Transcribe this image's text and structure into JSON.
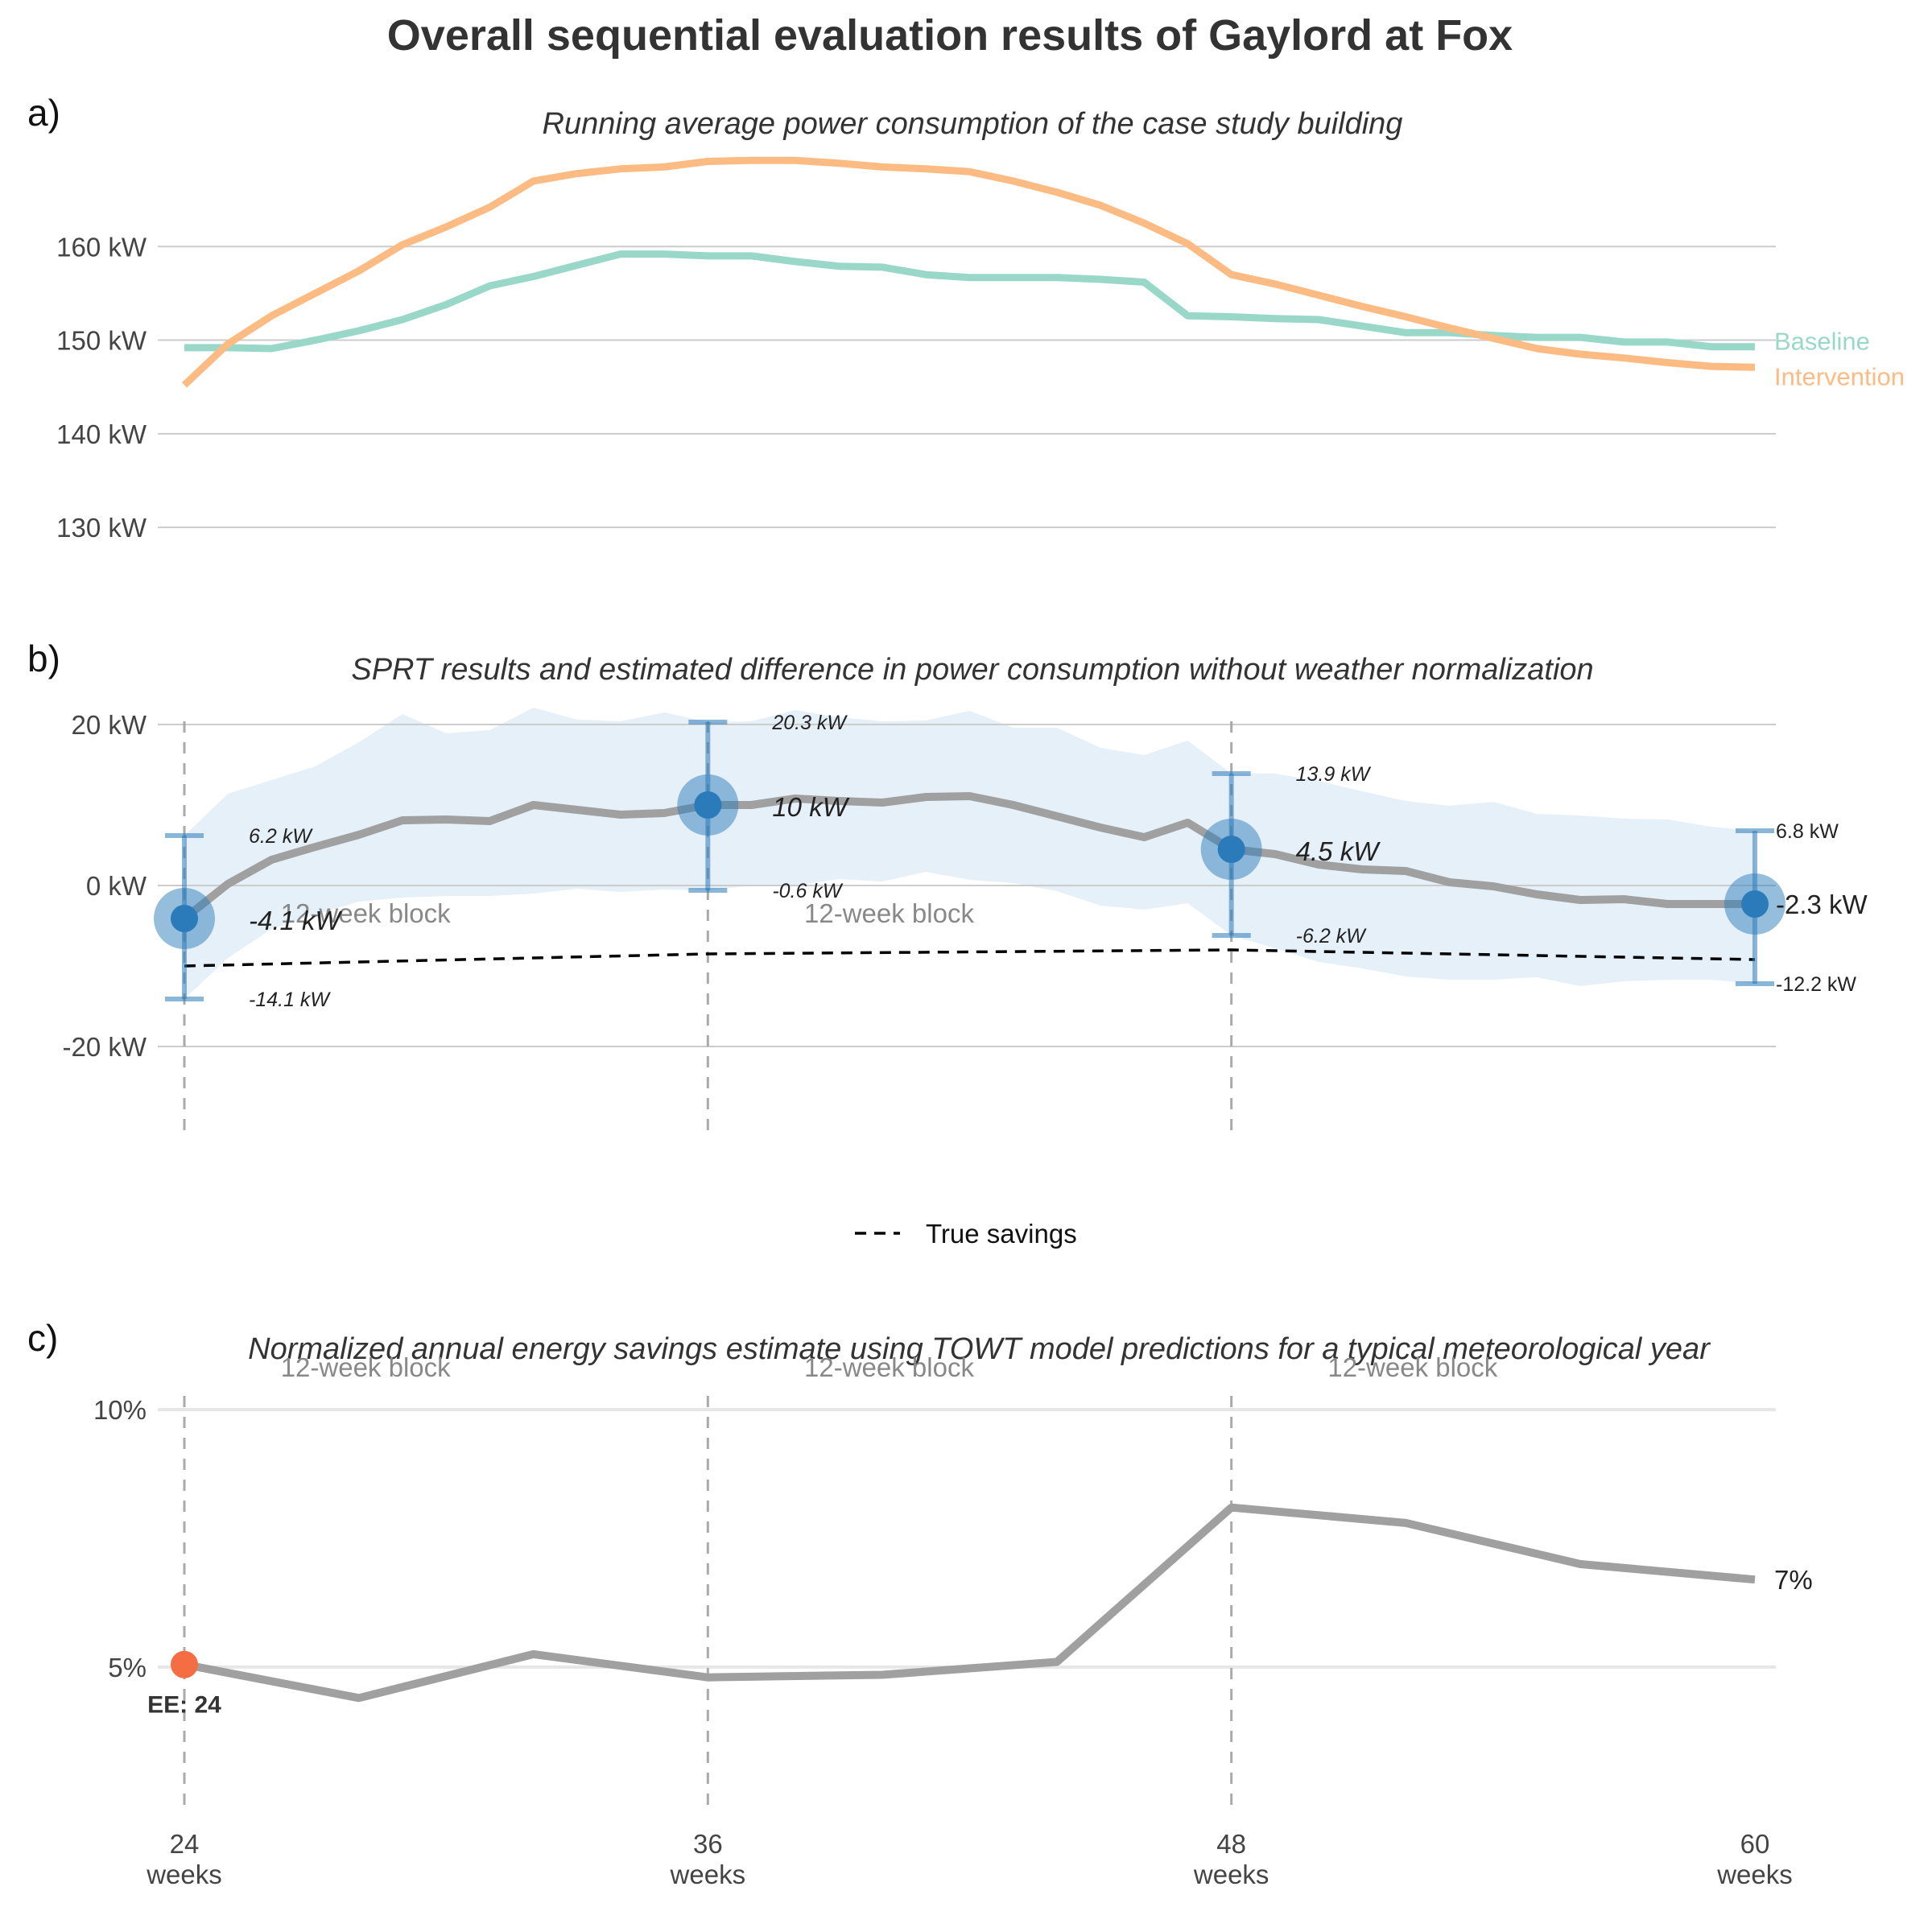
{
  "title": "Overall sequential evaluation results of Gaylord at Fox",
  "panels": {
    "a": {
      "label": "a)",
      "subtitle": "Running average power consumption of the case study building"
    },
    "b": {
      "label": "b)",
      "subtitle": "SPRT results and estimated difference in power consumption without weather normalization"
    },
    "c": {
      "label": "c)",
      "subtitle": "Normalized annual energy savings estimate using TOWT model predictions for a typical meteorological year"
    }
  },
  "colors": {
    "baseline": "#99d8c9",
    "intervention": "#fdbb84",
    "estimate_line": "#a0a0a0",
    "ribbon": "#deebf7",
    "point": "#2b7bba",
    "ee_point": "#f46d43"
  },
  "block_label": "12-week block",
  "legend": {
    "label": "True savings",
    "style": "dashed black"
  },
  "x_ticks": [
    {
      "week": 24,
      "line1": "24",
      "line2": "weeks"
    },
    {
      "week": 36,
      "line1": "36",
      "line2": "weeks"
    },
    {
      "week": 48,
      "line1": "48",
      "line2": "weeks"
    },
    {
      "week": 60,
      "line1": "60",
      "line2": "weeks"
    }
  ],
  "chart_data": [
    {
      "type": "line",
      "panel": "a",
      "xlim": [
        24,
        60
      ],
      "ylim": [
        127,
        170
      ],
      "y_ticks": [
        {
          "value": 130,
          "label": "130 kW"
        },
        {
          "value": 140,
          "label": "140 kW"
        },
        {
          "value": 150,
          "label": "150 kW"
        },
        {
          "value": 160,
          "label": "160 kW"
        }
      ],
      "grid": true,
      "x": [
        24,
        25,
        26,
        27,
        28,
        29,
        30,
        31,
        32,
        33,
        34,
        35,
        36,
        37,
        38,
        39,
        40,
        41,
        42,
        43,
        44,
        45,
        46,
        47,
        48,
        49,
        50,
        51,
        52,
        53,
        54,
        55,
        56,
        57,
        58,
        59,
        60
      ],
      "series": [
        {
          "name": "Baseline",
          "label": "Baseline",
          "values": [
            149.2,
            149.2,
            149.1,
            150.0,
            151.0,
            152.2,
            153.8,
            155.8,
            156.8,
            158.0,
            159.2,
            159.2,
            159.0,
            159.0,
            158.4,
            157.9,
            157.8,
            157.0,
            156.7,
            156.7,
            156.7,
            156.5,
            156.2,
            152.6,
            152.5,
            152.3,
            152.2,
            151.5,
            150.8,
            150.8,
            150.5,
            150.3,
            150.3,
            149.8,
            149.8,
            149.3,
            149.3
          ]
        },
        {
          "name": "Intervention",
          "label": "Intervention",
          "values": [
            145.2,
            149.6,
            152.6,
            155.0,
            157.4,
            160.2,
            162.1,
            164.2,
            167.0,
            167.8,
            168.3,
            168.5,
            169.1,
            169.2,
            169.2,
            168.9,
            168.5,
            168.3,
            168.0,
            167.0,
            165.8,
            164.4,
            162.5,
            160.3,
            157.0,
            156.0,
            154.8,
            153.6,
            152.5,
            151.3,
            150.2,
            149.1,
            148.5,
            148.1,
            147.6,
            147.2,
            147.1
          ]
        }
      ]
    },
    {
      "type": "line",
      "panel": "b",
      "xlim": [
        24,
        60
      ],
      "ylim": [
        -30,
        24
      ],
      "y_ticks": [
        {
          "value": -20,
          "label": "-20 kW"
        },
        {
          "value": 0,
          "label": "0 kW"
        },
        {
          "value": 20,
          "label": "20 kW"
        }
      ],
      "grid": true,
      "x": [
        24,
        25,
        26,
        27,
        28,
        29,
        30,
        31,
        32,
        33,
        34,
        35,
        36,
        37,
        38,
        39,
        40,
        41,
        42,
        43,
        44,
        45,
        46,
        47,
        48,
        49,
        50,
        51,
        52,
        53,
        54,
        55,
        56,
        57,
        58,
        59,
        60
      ],
      "estimate": [
        -4.1,
        0.2,
        3.2,
        4.8,
        6.3,
        8.1,
        8.2,
        8.0,
        10.0,
        9.4,
        8.8,
        9.0,
        10.0,
        10.0,
        10.8,
        10.5,
        10.3,
        11.0,
        11.1,
        10.0,
        8.6,
        7.2,
        6.0,
        7.8,
        4.5,
        3.9,
        2.6,
        2.0,
        1.8,
        0.4,
        -0.1,
        -1.1,
        -1.8,
        -1.7,
        -2.3,
        -2.3,
        -2.3
      ],
      "ribbon_upper": [
        6.2,
        11.4,
        13.1,
        14.8,
        17.8,
        21.3,
        18.9,
        19.3,
        22.1,
        20.6,
        20.4,
        21.5,
        20.3,
        20.4,
        21.8,
        20.9,
        20.4,
        20.5,
        21.7,
        19.6,
        19.6,
        17.1,
        16.2,
        18.0,
        13.9,
        13.9,
        13.0,
        11.7,
        10.5,
        9.9,
        10.4,
        8.9,
        8.7,
        8.3,
        8.2,
        7.3,
        6.8
      ],
      "ribbon_lower": [
        -14.1,
        -9.0,
        -5.4,
        -3.6,
        -2.0,
        -1.5,
        -1.3,
        -1.3,
        -1.0,
        -0.4,
        -0.8,
        -0.5,
        -0.6,
        0.0,
        0.0,
        0.8,
        0.5,
        1.7,
        0.7,
        0.3,
        -0.7,
        -2.5,
        -3.0,
        -2.2,
        -6.2,
        -7.8,
        -9.5,
        -10.3,
        -11.3,
        -11.7,
        -11.7,
        -11.4,
        -12.5,
        -11.9,
        -11.7,
        -11.7,
        -12.2
      ],
      "true_savings": {
        "x": [
          24,
          36,
          48,
          60
        ],
        "values": [
          -10.0,
          -8.5,
          -8.0,
          -9.2
        ]
      },
      "sprt_points": [
        {
          "week": 24,
          "estimate": -4.1,
          "lower": -14.1,
          "upper": 6.2,
          "estimate_label": "-4.1 kW",
          "upper_label": "6.2 kW",
          "lower_label": "-14.1 kW"
        },
        {
          "week": 36,
          "estimate": 10.0,
          "lower": -0.6,
          "upper": 20.3,
          "estimate_label": "10 kW",
          "upper_label": "20.3 kW",
          "lower_label": "-0.6 kW"
        },
        {
          "week": 48,
          "estimate": 4.5,
          "lower": -6.2,
          "upper": 13.9,
          "estimate_label": "4.5 kW",
          "upper_label": "13.9 kW",
          "lower_label": "-6.2 kW"
        },
        {
          "week": 60,
          "estimate": -2.3,
          "lower": -12.2,
          "upper": 6.8,
          "estimate_label": "-2.3 kW",
          "upper_label": "6.8 kW",
          "lower_label": "-12.2 kW"
        }
      ]
    },
    {
      "type": "line",
      "panel": "c",
      "xlim": [
        24,
        60
      ],
      "ylim": [
        2.2,
        10.8
      ],
      "y_ticks": [
        {
          "value": 5,
          "label": "5%"
        },
        {
          "value": 10,
          "label": "10%"
        }
      ],
      "grid": true,
      "x": [
        24,
        28,
        32,
        36,
        40,
        44,
        48,
        52,
        56,
        60
      ],
      "values": [
        5.05,
        4.4,
        5.25,
        4.8,
        4.85,
        5.1,
        8.1,
        7.8,
        7.0,
        6.7
      ],
      "end_label": "7%",
      "ee_marker": {
        "week": 24,
        "value": 5.05,
        "label": "EE: 24"
      }
    }
  ]
}
